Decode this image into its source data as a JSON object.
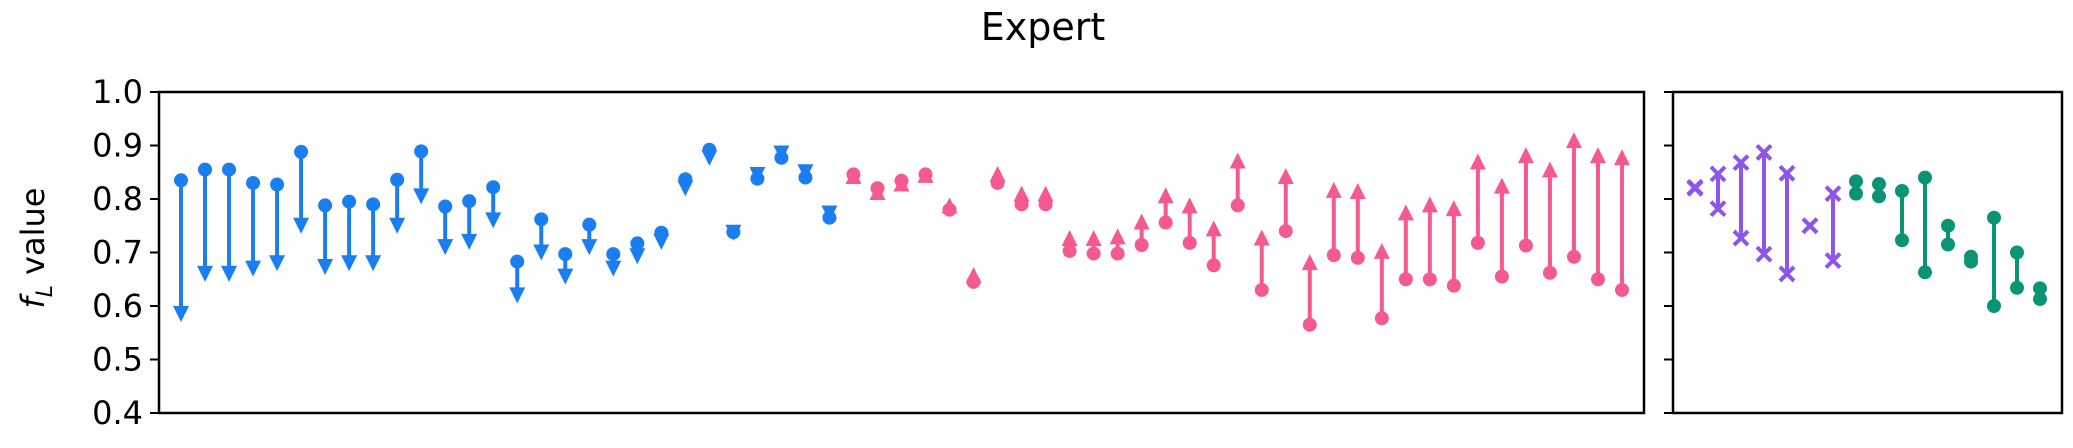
{
  "chart_data": {
    "title": "Expert",
    "ylabel_main": "f",
    "ylabel_sub": "L",
    "ylabel_rest": "value",
    "ylim": [
      0.4,
      1.0
    ],
    "yticks": [
      "0.4",
      "0.5",
      "0.6",
      "0.7",
      "0.8",
      "0.9",
      "1.0"
    ],
    "colors": {
      "blue": "#1a7ef0",
      "pink": "#f45992",
      "purple": "#8e55ea",
      "green": "#0a9475"
    },
    "panels": [
      {
        "type": "arrow-range",
        "series": [
          {
            "color": "blue",
            "marker": "down-arrow",
            "pairs": [
              [
                0.835,
                0.57
              ],
              [
                0.855,
                0.645
              ],
              [
                0.855,
                0.645
              ],
              [
                0.83,
                0.655
              ],
              [
                0.827,
                0.665
              ],
              [
                0.888,
                0.735
              ],
              [
                0.788,
                0.658
              ],
              [
                0.795,
                0.665
              ],
              [
                0.79,
                0.665
              ],
              [
                0.836,
                0.735
              ],
              [
                0.889,
                0.79
              ],
              [
                0.786,
                0.695
              ],
              [
                0.796,
                0.705
              ],
              [
                0.822,
                0.745
              ],
              [
                0.683,
                0.605
              ],
              [
                0.762,
                0.685
              ],
              [
                0.697,
                0.64
              ],
              [
                0.752,
                0.695
              ],
              [
                0.697,
                0.655
              ],
              [
                0.717,
                0.678
              ],
              [
                0.737,
                0.705
              ],
              [
                0.837,
                0.805
              ],
              [
                0.892,
                0.862
              ],
              [
                0.738,
                0.722
              ],
              [
                0.838,
                0.83
              ],
              [
                0.877,
                0.87
              ],
              [
                0.84,
                0.835
              ],
              [
                0.765,
                0.758
              ]
            ]
          },
          {
            "color": "pink",
            "marker": "up-arrow",
            "pairs": [
              [
                0.846,
                0.858
              ],
              [
                0.82,
                0.828
              ],
              [
                0.834,
                0.844
              ],
              [
                0.846,
                0.86
              ],
              [
                0.78,
                0.803
              ],
              [
                0.645,
                0.673
              ],
              [
                0.83,
                0.862
              ],
              [
                0.79,
                0.825
              ],
              [
                0.79,
                0.825
              ],
              [
                0.703,
                0.742
              ],
              [
                0.698,
                0.742
              ],
              [
                0.698,
                0.745
              ],
              [
                0.714,
                0.773
              ],
              [
                0.756,
                0.822
              ],
              [
                0.718,
                0.803
              ],
              [
                0.676,
                0.76
              ],
              [
                0.788,
                0.887
              ],
              [
                0.63,
                0.743
              ],
              [
                0.74,
                0.858
              ],
              [
                0.565,
                0.697
              ],
              [
                0.695,
                0.832
              ],
              [
                0.69,
                0.83
              ],
              [
                0.577,
                0.718
              ],
              [
                0.65,
                0.79
              ],
              [
                0.65,
                0.805
              ],
              [
                0.638,
                0.798
              ],
              [
                0.718,
                0.885
              ],
              [
                0.655,
                0.84
              ],
              [
                0.713,
                0.897
              ],
              [
                0.662,
                0.87
              ],
              [
                0.692,
                0.925
              ],
              [
                0.65,
                0.897
              ],
              [
                0.63,
                0.893
              ]
            ]
          }
        ]
      },
      {
        "type": "dumbbell",
        "series": [
          {
            "color": "purple",
            "marker": "x",
            "pairs": [
              [
                0.822,
                0.82
              ],
              [
                0.847,
                0.782
              ],
              [
                0.868,
                0.727
              ],
              [
                0.887,
                0.697
              ],
              [
                0.848,
                0.66
              ],
              [
                0.75,
                0.75
              ],
              [
                0.81,
                0.685
              ]
            ]
          },
          {
            "color": "green",
            "marker": "circle",
            "pairs": [
              [
                0.833,
                0.81
              ],
              [
                0.828,
                0.805
              ],
              [
                0.815,
                0.723
              ],
              [
                0.84,
                0.663
              ],
              [
                0.75,
                0.715
              ],
              [
                0.692,
                0.683
              ],
              [
                0.765,
                0.6
              ],
              [
                0.7,
                0.634
              ],
              [
                0.633,
                0.613
              ]
            ]
          }
        ]
      }
    ]
  }
}
